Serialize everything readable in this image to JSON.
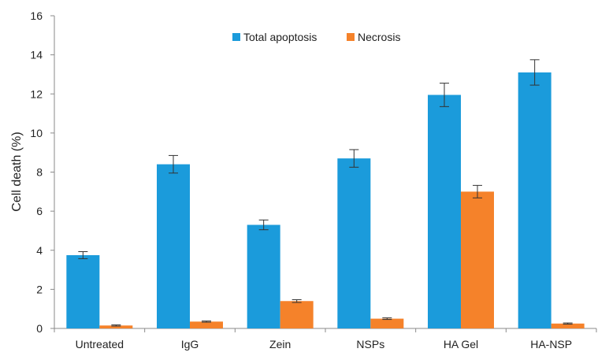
{
  "chart_data": {
    "type": "bar",
    "title": "",
    "xlabel": "",
    "ylabel": "Cell death (%)",
    "ylim": [
      0,
      16
    ],
    "yticks": [
      "0",
      "2",
      "4",
      "6",
      "8",
      "10",
      "12",
      "14",
      "16"
    ],
    "grid": false,
    "legend_position": "top-center",
    "categories": [
      "Untreated",
      "IgG",
      "Zein",
      "NSPs",
      "HA Gel",
      "HA-NSP"
    ],
    "series": [
      {
        "name": "Total apoptosis",
        "color": "#1b9bdb",
        "values": [
          3.75,
          8.4,
          5.3,
          8.7,
          11.95,
          13.1
        ],
        "errors": [
          0.18,
          0.45,
          0.25,
          0.45,
          0.6,
          0.65
        ]
      },
      {
        "name": "Necrosis",
        "color": "#f5822a",
        "values": [
          0.15,
          0.35,
          1.4,
          0.5,
          7.0,
          0.25
        ],
        "errors": [
          0.03,
          0.03,
          0.07,
          0.04,
          0.32,
          0.03
        ]
      }
    ]
  }
}
